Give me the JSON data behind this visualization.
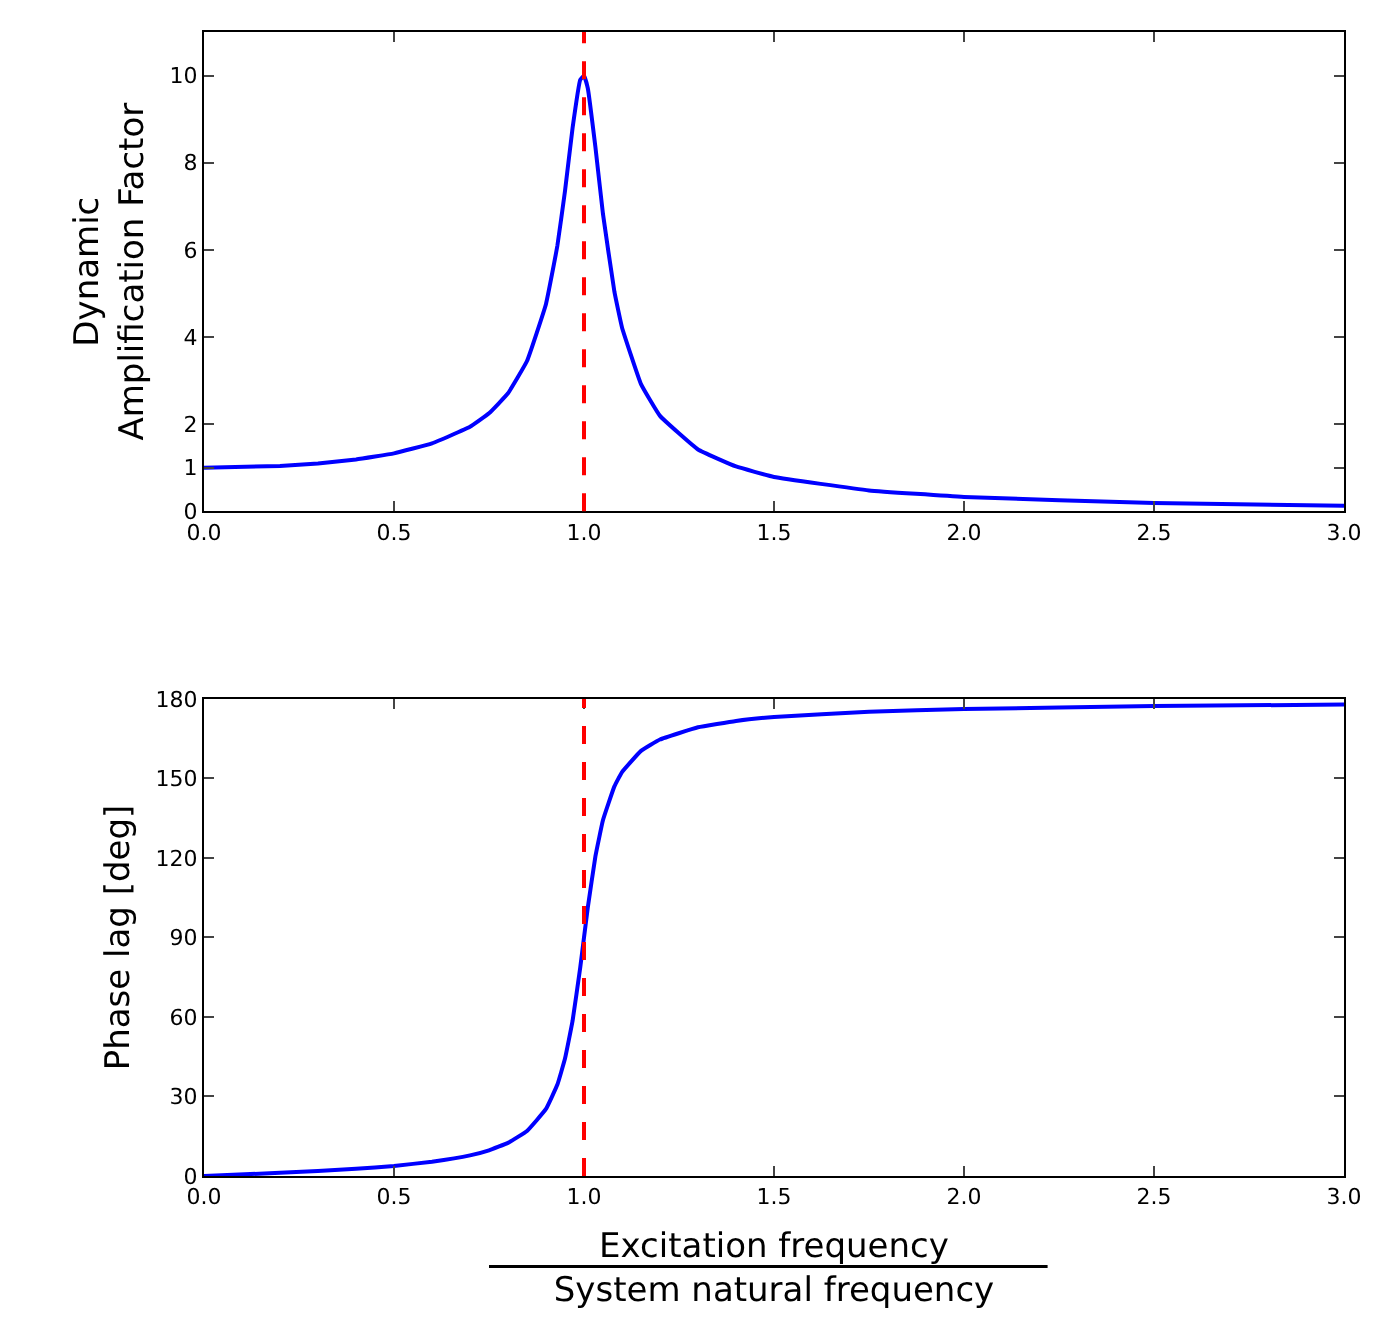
{
  "chart_data": [
    {
      "type": "line",
      "ylabel": "Dynamic\nAmplification Factor",
      "x": [
        0,
        0.2,
        0.3,
        0.4,
        0.5,
        0.6,
        0.7,
        0.75,
        0.8,
        0.85,
        0.9,
        0.93,
        0.95,
        0.97,
        0.99,
        1.0,
        1.01,
        1.03,
        1.05,
        1.08,
        1.1,
        1.15,
        1.2,
        1.3,
        1.4,
        1.5,
        1.75,
        2.0,
        2.5,
        3.0
      ],
      "series": [
        {
          "color": "#0000ff",
          "values": [
            1,
            1.04,
            1.1,
            1.19,
            1.33,
            1.56,
            1.94,
            2.25,
            2.71,
            3.45,
            4.76,
            6.1,
            7.35,
            8.8,
            9.9,
            10,
            9.71,
            8.36,
            6.82,
            5.04,
            4.22,
            2.92,
            2.19,
            1.42,
            1.03,
            0.79,
            0.48,
            0.33,
            0.19,
            0.13
          ]
        }
      ],
      "xlim": [
        0,
        3
      ],
      "xticks": [
        {
          "value": 0,
          "label": "0.0"
        },
        {
          "value": 0.5,
          "label": "0.5"
        },
        {
          "value": 1,
          "label": "1.0"
        },
        {
          "value": 1.5,
          "label": "1.5"
        },
        {
          "value": 2,
          "label": "2.0"
        },
        {
          "value": 2.5,
          "label": "2.5"
        },
        {
          "value": 3,
          "label": "3.0"
        }
      ],
      "ylim": [
        0,
        11
      ],
      "yticks": [
        0,
        1,
        2,
        4,
        6,
        8,
        10
      ],
      "ref_lines": [
        {
          "axis": "x",
          "value": 1,
          "color": "#ff0000",
          "line_style": "dashed"
        }
      ]
    },
    {
      "type": "line",
      "ylabel": "Phase lag [deg]",
      "xlabel": "Excitation frequency\nSystem natural frequency",
      "x": [
        0,
        0.2,
        0.4,
        0.5,
        0.6,
        0.7,
        0.75,
        0.8,
        0.85,
        0.9,
        0.93,
        0.95,
        0.97,
        0.99,
        1.0,
        1.01,
        1.03,
        1.05,
        1.08,
        1.1,
        1.15,
        1.2,
        1.3,
        1.4,
        1.5,
        1.75,
        2.0,
        2.5,
        3.0
      ],
      "series": [
        {
          "color": "#0000ff",
          "values": [
            0,
            1.2,
            2.7,
            3.8,
            5.4,
            7.8,
            9.7,
            12.5,
            17,
            25.3,
            34.5,
            44.3,
            58.6,
            78.6,
            90,
            101.3,
            120.6,
            134.3,
            147,
            152.4,
            160.4,
            164.7,
            169.3,
            171.7,
            173.2,
            175.2,
            176.2,
            177.3,
            177.9
          ]
        }
      ],
      "xlim": [
        0,
        3
      ],
      "xticks": [
        {
          "value": 0,
          "label": "0.0"
        },
        {
          "value": 0.5,
          "label": "0.5"
        },
        {
          "value": 1,
          "label": "1.0"
        },
        {
          "value": 1.5,
          "label": "1.5"
        },
        {
          "value": 2,
          "label": "2.0"
        },
        {
          "value": 2.5,
          "label": "2.5"
        },
        {
          "value": 3,
          "label": "3.0"
        }
      ],
      "ylim": [
        0,
        180
      ],
      "yticks": [
        0,
        30,
        60,
        90,
        120,
        150,
        180
      ],
      "ref_lines": [
        {
          "axis": "x",
          "value": 1,
          "color": "#ff0000",
          "line_style": "dashed"
        }
      ]
    }
  ]
}
